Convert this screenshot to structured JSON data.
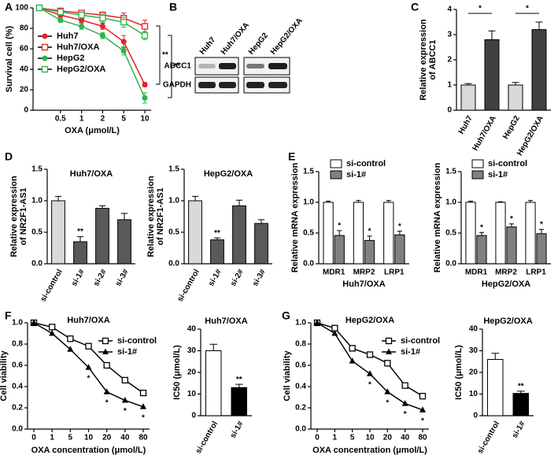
{
  "chart_data": [
    {
      "type": "line",
      "panel": "A",
      "xlabel": "OXA (μmol/L)",
      "ylabel": [
        "Survival cell (%)"
      ],
      "categories": [
        null,
        "0.5",
        "1",
        "2",
        "5",
        "10"
      ],
      "ylim": [
        0,
        100
      ],
      "yticks": [
        0,
        20,
        40,
        60,
        80,
        100
      ],
      "series": [
        {
          "name": "Huh7",
          "color": "#e8202a",
          "marker": "circle",
          "values": [
            100,
            93,
            88,
            82,
            67,
            25
          ],
          "errors": [
            null,
            2,
            2,
            3,
            6,
            2
          ]
        },
        {
          "name": "Huh7/OXA",
          "color": "#e8202a",
          "marker": "square-open",
          "values": [
            100,
            97,
            95,
            93,
            90,
            82
          ],
          "errors": [
            null,
            2,
            2,
            3,
            5,
            6
          ]
        },
        {
          "name": "HepG2",
          "color": "#2db34a",
          "marker": "circle",
          "values": [
            100,
            88,
            82,
            73,
            58,
            12
          ],
          "errors": [
            null,
            2,
            3,
            3,
            4,
            5
          ]
        },
        {
          "name": "HepG2/OXA",
          "color": "#2db34a",
          "marker": "square-open",
          "values": [
            100,
            96,
            93,
            90,
            86,
            73
          ],
          "errors": [
            null,
            2,
            3,
            4,
            5,
            4
          ]
        }
      ],
      "annotations": [
        "**",
        "**"
      ]
    },
    {
      "type": "bar",
      "panel": "C",
      "ylabel": [
        "Relative expression",
        "of ABCC1"
      ],
      "categories": [
        "Huh7",
        "Huh7/OXA",
        "HepG2",
        "HepG2/OXA"
      ],
      "ylim": [
        0,
        4
      ],
      "yticks": [
        0,
        1,
        2,
        3,
        4
      ],
      "series": [
        {
          "colors": [
            "#d9d9d9",
            "#404040",
            "#d9d9d9",
            "#404040"
          ],
          "values": [
            1.0,
            2.8,
            1.0,
            3.2
          ],
          "errors": [
            0.06,
            0.35,
            0.1,
            0.3
          ]
        }
      ],
      "annotations": [
        "*",
        "*"
      ]
    },
    {
      "type": "bar",
      "panel": "D",
      "title": "Huh7/OXA",
      "ylabel": [
        "Relative expression",
        "of NR2F1-AS1"
      ],
      "categories": [
        "si-control",
        "si-1#",
        "si-2#",
        "si-3#"
      ],
      "ylim": [
        0,
        1.5
      ],
      "yticks": [
        {
          "value": 0,
          "label": "0.0"
        },
        {
          "value": 0.5,
          "label": "0.5"
        },
        {
          "value": 1,
          "label": "1.0"
        },
        {
          "value": 1.5,
          "label": "1.5"
        }
      ],
      "series": [
        {
          "colors": [
            "#d9d9d9",
            "#595959",
            "#595959",
            "#595959"
          ],
          "values": [
            1.0,
            0.35,
            0.88,
            0.7
          ],
          "errors": [
            0.07,
            0.08,
            0.04,
            0.1
          ],
          "sig": [
            null,
            "**",
            null,
            null
          ]
        }
      ]
    },
    {
      "type": "bar",
      "title": "HepG2/OXA",
      "ylabel": [
        "Relative expression",
        "of NR2F1-AS1"
      ],
      "categories": [
        "si-control",
        "si-1#",
        "si-2#",
        "si-3#"
      ],
      "ylim": [
        0,
        1.5
      ],
      "yticks": [
        {
          "value": 0,
          "label": "0.0"
        },
        {
          "value": 0.5,
          "label": "0.5"
        },
        {
          "value": 1,
          "label": "1.0"
        },
        {
          "value": 1.5,
          "label": "1.5"
        }
      ],
      "series": [
        {
          "colors": [
            "#d9d9d9",
            "#595959",
            "#595959",
            "#595959"
          ],
          "values": [
            1.0,
            0.38,
            0.92,
            0.64
          ],
          "errors": [
            0.07,
            0.03,
            0.09,
            0.06
          ],
          "sig": [
            null,
            "**",
            null,
            null
          ]
        }
      ]
    },
    {
      "type": "bar",
      "panel": "E",
      "xlabel": "Huh7/OXA",
      "ylabel": [
        "Relative mRNA expression"
      ],
      "categories": [
        "MDR1",
        "MRP2",
        "LRP1"
      ],
      "ylim": [
        0,
        1.5
      ],
      "yticks": [
        {
          "value": 0,
          "label": "0.0"
        },
        {
          "value": 0.5,
          "label": "0.5"
        },
        {
          "value": 1,
          "label": "1.0"
        },
        {
          "value": 1.5,
          "label": "1.5"
        }
      ],
      "series": [
        {
          "name": "si-control",
          "color": "#ffffff",
          "values": [
            1.0,
            1.0,
            1.0
          ],
          "errors": [
            0.02,
            0.03,
            0.03
          ]
        },
        {
          "name": "si-1#",
          "color": "#808080",
          "values": [
            0.46,
            0.38,
            0.47
          ],
          "errors": [
            0.08,
            0.07,
            0.06
          ],
          "sig": [
            "*",
            "*",
            "*"
          ]
        }
      ]
    },
    {
      "type": "bar",
      "xlabel": "HepG2/OXA",
      "ylabel": [
        "Relative mRNA expression"
      ],
      "categories": [
        "MDR1",
        "MRP2",
        "LRP1"
      ],
      "ylim": [
        0,
        1.5
      ],
      "yticks": [
        {
          "value": 0,
          "label": "0.0"
        },
        {
          "value": 0.5,
          "label": "0.5"
        },
        {
          "value": 1,
          "label": "1.0"
        },
        {
          "value": 1.5,
          "label": "1.5"
        }
      ],
      "series": [
        {
          "name": "si-control",
          "color": "#ffffff",
          "values": [
            1.0,
            1.0,
            1.0
          ],
          "errors": [
            0.02,
            0.01,
            0.03
          ]
        },
        {
          "name": "si-1#",
          "color": "#808080",
          "values": [
            0.46,
            0.6,
            0.49
          ],
          "errors": [
            0.05,
            0.05,
            0.07
          ],
          "sig": [
            "*",
            "*",
            "*"
          ]
        }
      ]
    },
    {
      "type": "line",
      "panel": "F",
      "title": "Huh7/OXA",
      "xlabel": "OXA concentration (μmol/L)",
      "ylabel": [
        "Cell viability"
      ],
      "categories": [
        "0",
        "1",
        "5",
        "10",
        "20",
        "40",
        "80"
      ],
      "ylim": [
        0,
        1
      ],
      "yticks": [
        {
          "value": 0,
          "label": "0.0"
        },
        {
          "value": 0.2,
          "label": "0.2"
        },
        {
          "value": 0.4,
          "label": "0.4"
        },
        {
          "value": 0.6,
          "label": "0.6"
        },
        {
          "value": 0.8,
          "label": "0.8"
        },
        {
          "value": 1,
          "label": "1.0"
        }
      ],
      "series": [
        {
          "name": "si-control",
          "color": "#000000",
          "marker": "square-open",
          "values": [
            1.0,
            0.96,
            0.85,
            0.78,
            0.6,
            0.46,
            0.34
          ]
        },
        {
          "name": "si-1#",
          "color": "#000000",
          "marker": "triangle",
          "values": [
            1.0,
            0.9,
            0.75,
            0.58,
            0.35,
            0.27,
            0.21
          ],
          "sig": [
            null,
            null,
            null,
            "*",
            "*",
            "*",
            "*"
          ]
        }
      ]
    },
    {
      "type": "bar",
      "title": "Huh7/OXA",
      "ylabel": [
        "IC50 (μmol/L)"
      ],
      "categories": [
        "si-control",
        "si-1#"
      ],
      "ylim": [
        0,
        40
      ],
      "yticks": [
        0,
        10,
        20,
        30,
        40
      ],
      "series": [
        {
          "colors": [
            "#ffffff",
            "#000000"
          ],
          "values": [
            30,
            13
          ],
          "errors": [
            3,
            1.5
          ],
          "sig": [
            null,
            "**"
          ]
        }
      ]
    },
    {
      "type": "line",
      "panel": "G",
      "title": "HepG2/OXA",
      "xlabel": "OXA concentration (μmol/L)",
      "ylabel": [
        "Cell viability"
      ],
      "categories": [
        "0",
        "1",
        "5",
        "10",
        "20",
        "40",
        "80"
      ],
      "ylim": [
        0,
        1
      ],
      "yticks": [
        {
          "value": 0,
          "label": "0.0"
        },
        {
          "value": 0.2,
          "label": "0.2"
        },
        {
          "value": 0.4,
          "label": "0.4"
        },
        {
          "value": 0.6,
          "label": "0.6"
        },
        {
          "value": 0.8,
          "label": "0.8"
        },
        {
          "value": 1,
          "label": "1.0"
        }
      ],
      "series": [
        {
          "name": "si-control",
          "color": "#000000",
          "marker": "square-open",
          "values": [
            1.0,
            0.95,
            0.76,
            0.7,
            0.62,
            0.41,
            0.31
          ]
        },
        {
          "name": "si-1#",
          "color": "#000000",
          "marker": "triangle",
          "values": [
            1.0,
            0.9,
            0.64,
            0.52,
            0.35,
            0.24,
            0.18
          ],
          "sig": [
            null,
            null,
            null,
            "*",
            "*",
            "*",
            "*"
          ]
        }
      ]
    },
    {
      "type": "bar",
      "title": "HepG2/OXA",
      "ylabel": [
        "IC50 (μmol/L)"
      ],
      "categories": [
        "si-control",
        "si-1#"
      ],
      "ylim": [
        0,
        40
      ],
      "yticks": [
        0,
        10,
        20,
        30,
        40
      ],
      "series": [
        {
          "colors": [
            "#ffffff",
            "#000000"
          ],
          "values": [
            26,
            10.3
          ],
          "errors": [
            2.8,
            1
          ],
          "sig": [
            null,
            "**"
          ]
        }
      ]
    }
  ],
  "blot": {
    "panel": "B",
    "lanes": [
      "Huh7",
      "Huh7/OXA",
      "HepG2",
      "HepG2/OXA"
    ],
    "rows": [
      "ABCC1",
      "GAPDH"
    ]
  }
}
